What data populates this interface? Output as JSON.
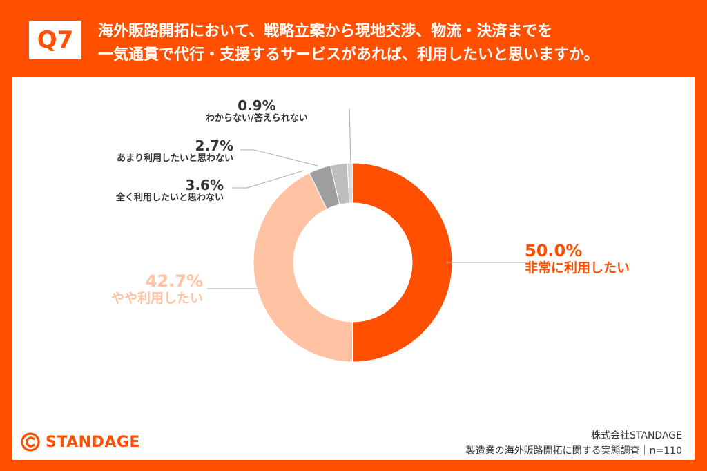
{
  "header": {
    "badge": "Q7",
    "title_line1": "海外販路開拓において、戦略立案から現地交渉、物流・決済までを",
    "title_line2": "一気通貫で代行・支援するサービスがあれば、利用したいと思いますか。"
  },
  "chart_data": {
    "type": "pie",
    "donut": true,
    "slices": [
      {
        "label": "非常に利用したい",
        "value": 50.0,
        "value_label": "50.0%",
        "color": "#ff4f00"
      },
      {
        "label": "やや利用したい",
        "value": 42.7,
        "value_label": "42.7%",
        "color": "#ffc2a3"
      },
      {
        "label": "全く利用したいと思わない",
        "value": 3.6,
        "value_label": "3.6%",
        "color": "#9e9e9e"
      },
      {
        "label": "あまり利用したいと思わない",
        "value": 2.7,
        "value_label": "2.7%",
        "color": "#bdbdbd"
      },
      {
        "label": "わからない/答えられない",
        "value": 0.9,
        "value_label": "0.9%",
        "color": "#d9d9d9"
      }
    ]
  },
  "logo": {
    "text": "STANDAGE",
    "icon": "standage-logo-icon"
  },
  "footer": {
    "company": "株式会社STANDAGE",
    "survey": "製造業の海外販路開拓に関する実態調査｜n=110"
  }
}
